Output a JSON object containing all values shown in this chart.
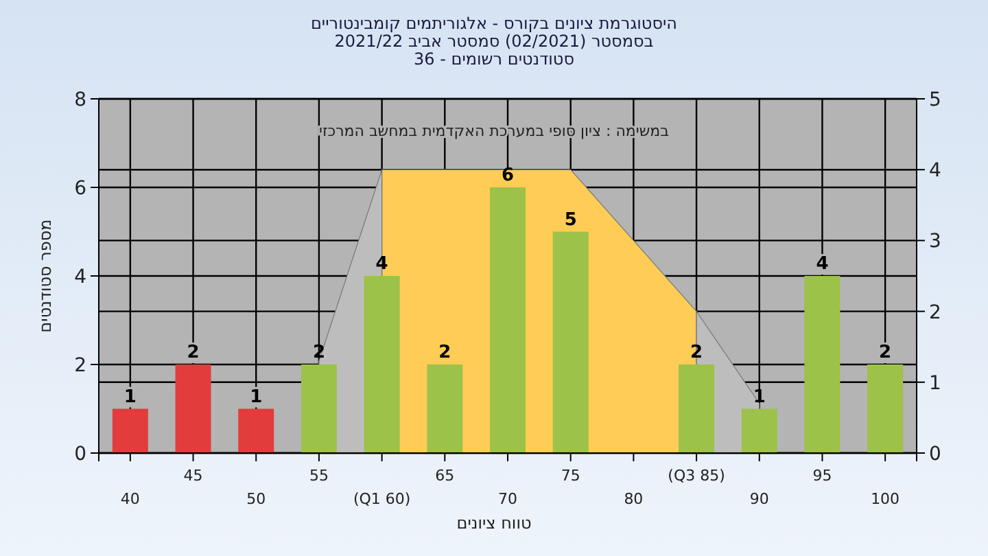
{
  "chart_data": {
    "type": "bar",
    "title": "היסטוגרמת ציונים בקורס - אלגוריתמים קומבינטוריים\nבסמסטר  (02/2021)  סמסטר אביב 2021/22\nסטודנטים רשומים - 36",
    "xlabel": "טווח ציונים",
    "ylabel": "מספר סטודנטים",
    "annotations": [
      "במשימה : ציון סופי במערכת האקדמית במחשב המרכזי"
    ],
    "categories": [
      "40",
      "45",
      "50",
      "55",
      "(Q1 60)",
      "65",
      "70",
      "75",
      "80",
      "(Q3 85)",
      "90",
      "95",
      "100"
    ],
    "series": [
      {
        "type": "area",
        "axis": "y2",
        "color": "#ffcc55",
        "values": [
          null,
          null,
          null,
          null,
          4,
          4,
          4,
          4,
          3,
          2,
          null,
          null,
          null
        ]
      },
      {
        "type": "area",
        "axis": "y2",
        "color": "#bdbdbd",
        "values": [
          null,
          null,
          null,
          1.3,
          4,
          null,
          null,
          null,
          null,
          null,
          null,
          null,
          null
        ]
      },
      {
        "type": "area",
        "axis": "y2",
        "color": "#bdbdbd",
        "values": [
          null,
          null,
          null,
          null,
          null,
          null,
          null,
          null,
          null,
          2,
          0.7,
          null,
          null
        ]
      },
      {
        "type": "bar",
        "colors": [
          "#e23c3c",
          "#e23c3c",
          "#e23c3c",
          "#9cc24a",
          "#9cc24a",
          "#9cc24a",
          "#9cc24a",
          "#9cc24a",
          null,
          "#9cc24a",
          "#9cc24a",
          "#9cc24a",
          "#9cc24a"
        ],
        "values": [
          1,
          2,
          1,
          2,
          4,
          2,
          6,
          5,
          null,
          2,
          1,
          4,
          2
        ],
        "value_labels": [
          "1",
          "2",
          "1",
          "2",
          "4",
          "2",
          "6",
          "5",
          null,
          "2",
          "1",
          "4",
          "2"
        ]
      }
    ],
    "ylim": [
      0,
      8
    ],
    "yticks": [
      0,
      2,
      4,
      6,
      8
    ],
    "y2lim": [
      0,
      5
    ],
    "y2ticks": [
      0,
      1,
      2,
      3,
      4,
      5
    ],
    "grid": true
  }
}
